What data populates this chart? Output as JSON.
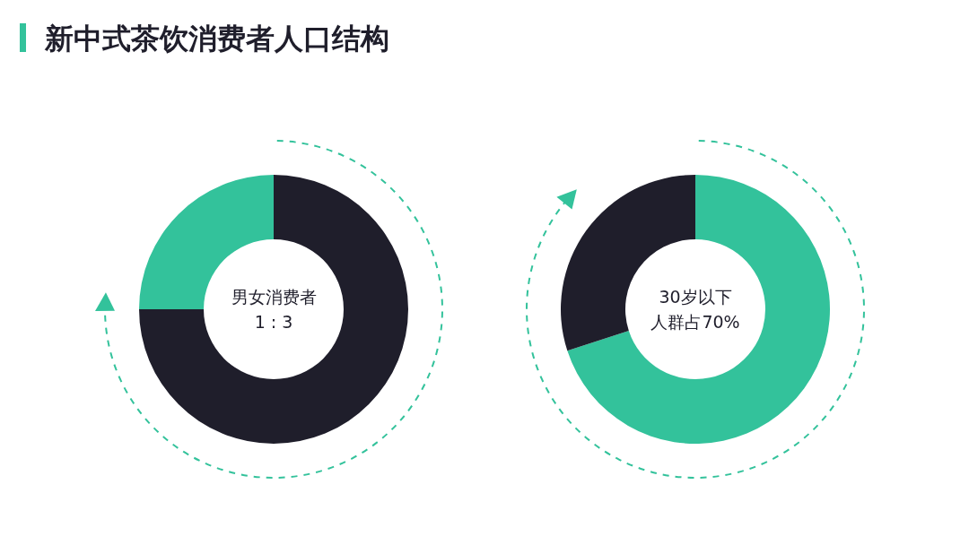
{
  "chart_data": [
    {
      "type": "donut",
      "title": "新中式茶饮消费者人口结构",
      "categories": [
        null,
        null
      ],
      "values": [
        75,
        25
      ],
      "colors": [
        "#1f1e2b",
        "#33c29b"
      ],
      "annotations": [
        "男女消费者",
        "1 : 3"
      ]
    },
    {
      "type": "donut",
      "categories": [
        null,
        null
      ],
      "values": [
        70,
        30
      ],
      "colors": [
        "#33c29b",
        "#1f1e2b"
      ],
      "annotations": [
        "30岁以下",
        "人群占70%"
      ]
    }
  ]
}
